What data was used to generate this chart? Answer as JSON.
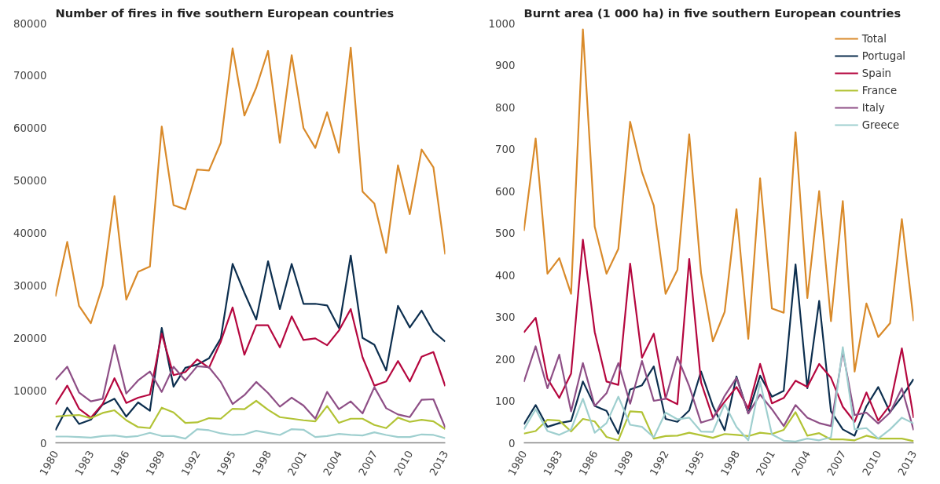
{
  "chart_data": [
    {
      "type": "line",
      "title": "Number of fires in five southern European countries",
      "x": [
        1980,
        1981,
        1982,
        1983,
        1984,
        1985,
        1986,
        1987,
        1988,
        1989,
        1990,
        1991,
        1992,
        1993,
        1994,
        1995,
        1996,
        1997,
        1998,
        1999,
        2000,
        2001,
        2002,
        2003,
        2004,
        2005,
        2006,
        2007,
        2008,
        2009,
        2010,
        2011,
        2012,
        2013
      ],
      "xlim": [
        1980,
        2013
      ],
      "xticks": [
        1980,
        1983,
        1986,
        1989,
        1992,
        1995,
        1998,
        2001,
        2004,
        2007,
        2010,
        2013
      ],
      "ylim": [
        0,
        80000
      ],
      "yticks": [
        0,
        10000,
        20000,
        30000,
        40000,
        50000,
        60000,
        70000,
        80000
      ],
      "grid": false,
      "legend": false,
      "marker": "none",
      "line_style": "solid",
      "series": [
        {
          "color": "#d98a2a",
          "values": [
            27900,
            38300,
            26100,
            22800,
            30000,
            47000,
            27300,
            32600,
            33600,
            60300,
            45300,
            44500,
            52100,
            51900,
            57200,
            75200,
            62400,
            67700,
            74700,
            57200,
            73900,
            60000,
            56200,
            63000,
            55300,
            75300,
            47900,
            45600,
            36200,
            52900,
            43600,
            55900,
            52500,
            35900
          ]
        },
        {
          "color": "#0d2f4f",
          "values": [
            2400,
            6700,
            3600,
            4400,
            7300,
            8400,
            5000,
            7700,
            6100,
            21900,
            10700,
            14300,
            14900,
            16100,
            19900,
            34100,
            28600,
            23500,
            34600,
            25500,
            34100,
            26500,
            26500,
            26200,
            21900,
            35700,
            20000,
            18700,
            13800,
            26100,
            22000,
            25200,
            21200,
            19300
          ]
        },
        {
          "color": "#b5073f",
          "values": [
            7300,
            10900,
            6500,
            4800,
            7400,
            12300,
            7600,
            8600,
            9200,
            20800,
            12900,
            13500,
            15900,
            14300,
            19300,
            25800,
            16800,
            22400,
            22400,
            18200,
            24100,
            19600,
            19900,
            18600,
            21400,
            25500,
            16300,
            10900,
            11700,
            15600,
            11700,
            16400,
            17300,
            10800
          ]
        },
        {
          "color": "#b2c335",
          "values": [
            5000,
            5200,
            5300,
            4700,
            5700,
            6200,
            4300,
            3000,
            2800,
            6700,
            5800,
            3800,
            3900,
            4700,
            4600,
            6500,
            6400,
            8000,
            6300,
            4900,
            4600,
            4300,
            4100,
            7000,
            3800,
            4600,
            4600,
            3400,
            2800,
            4800,
            4000,
            4400,
            4100,
            2600
          ]
        },
        {
          "color": "#8e4f86",
          "values": [
            12000,
            14500,
            9600,
            7900,
            8400,
            18600,
            9400,
            11900,
            13600,
            9700,
            14500,
            11900,
            14600,
            14400,
            11600,
            7400,
            9100,
            11600,
            9500,
            6900,
            8600,
            7100,
            4600,
            9700,
            6400,
            7900,
            5600,
            10600,
            6600,
            5400,
            4900,
            8200,
            8300,
            2900
          ]
        },
        {
          "color": "#9fcfcf",
          "values": [
            1200,
            1200,
            1100,
            1000,
            1300,
            1400,
            1100,
            1300,
            1900,
            1300,
            1300,
            800,
            2600,
            2400,
            1800,
            1500,
            1600,
            2300,
            1900,
            1500,
            2600,
            2500,
            1100,
            1300,
            1700,
            1500,
            1400,
            2000,
            1500,
            1100,
            1100,
            1600,
            1500,
            900
          ]
        }
      ]
    },
    {
      "type": "line",
      "title": "Burnt area (1 000 ha) in five southern European countries",
      "x": [
        1980,
        1981,
        1982,
        1983,
        1984,
        1985,
        1986,
        1987,
        1988,
        1989,
        1990,
        1991,
        1992,
        1993,
        1994,
        1995,
        1996,
        1997,
        1998,
        1999,
        2000,
        2001,
        2002,
        2003,
        2004,
        2005,
        2006,
        2007,
        2008,
        2009,
        2010,
        2011,
        2012,
        2013
      ],
      "xlim": [
        1980,
        2013
      ],
      "xticks": [
        1980,
        1983,
        1986,
        1989,
        1992,
        1995,
        1998,
        2001,
        2004,
        2007,
        2010,
        2013
      ],
      "ylim": [
        0,
        1000
      ],
      "yticks": [
        0,
        100,
        200,
        300,
        400,
        500,
        600,
        700,
        800,
        900,
        1000
      ],
      "grid": false,
      "legend": "top right",
      "marker": "none",
      "line_style": "solid",
      "series": [
        {
          "name": "Total",
          "color": "#d98a2a",
          "values": [
            505,
            725,
            403,
            440,
            355,
            985,
            515,
            403,
            462,
            765,
            645,
            565,
            355,
            412,
            735,
            405,
            242,
            312,
            557,
            248,
            630,
            320,
            310,
            740,
            345,
            600,
            290,
            576,
            170,
            332,
            252,
            285,
            533,
            290
          ]
        },
        {
          "name": "Portugal",
          "color": "#0d2f4f",
          "values": [
            44,
            90,
            38,
            47,
            52,
            146,
            88,
            76,
            22,
            127,
            137,
            182,
            57,
            50,
            77,
            170,
            88,
            30,
            158,
            70,
            160,
            110,
            124,
            425,
            130,
            338,
            75,
            32,
            17,
            87,
            133,
            73,
            110,
            152
          ]
        },
        {
          "name": "Spain",
          "color": "#b5073f",
          "values": [
            263,
            298,
            153,
            107,
            165,
            484,
            264,
            146,
            138,
            427,
            203,
            260,
            106,
            92,
            438,
            144,
            60,
            98,
            133,
            82,
            188,
            94,
            107,
            148,
            133,
            188,
            155,
            86,
            50,
            120,
            53,
            90,
            225,
            59
          ]
        },
        {
          "name": "France",
          "color": "#b2c335",
          "values": [
            22,
            28,
            55,
            53,
            27,
            57,
            51,
            14,
            6,
            75,
            73,
            10,
            16,
            17,
            24,
            18,
            12,
            21,
            19,
            16,
            24,
            21,
            31,
            73,
            17,
            23,
            8,
            8,
            6,
            17,
            10,
            10,
            10,
            4
          ]
        },
        {
          "name": "Italy",
          "color": "#8e4f86",
          "values": [
            145,
            230,
            130,
            210,
            75,
            190,
            88,
            118,
            190,
            93,
            195,
            100,
            105,
            205,
            135,
            48,
            57,
            112,
            155,
            70,
            115,
            80,
            40,
            90,
            60,
            47,
            40,
            218,
            66,
            72,
            46,
            72,
            130,
            30
          ]
        },
        {
          "name": "Greece",
          "color": "#9fcfcf",
          "values": [
            32,
            80,
            28,
            19,
            32,
            105,
            24,
            47,
            110,
            43,
            38,
            13,
            72,
            56,
            60,
            27,
            26,
            92,
            38,
            6,
            145,
            20,
            5,
            3,
            10,
            6,
            13,
            228,
            32,
            35,
            10,
            32,
            60,
            46
          ]
        }
      ]
    }
  ]
}
